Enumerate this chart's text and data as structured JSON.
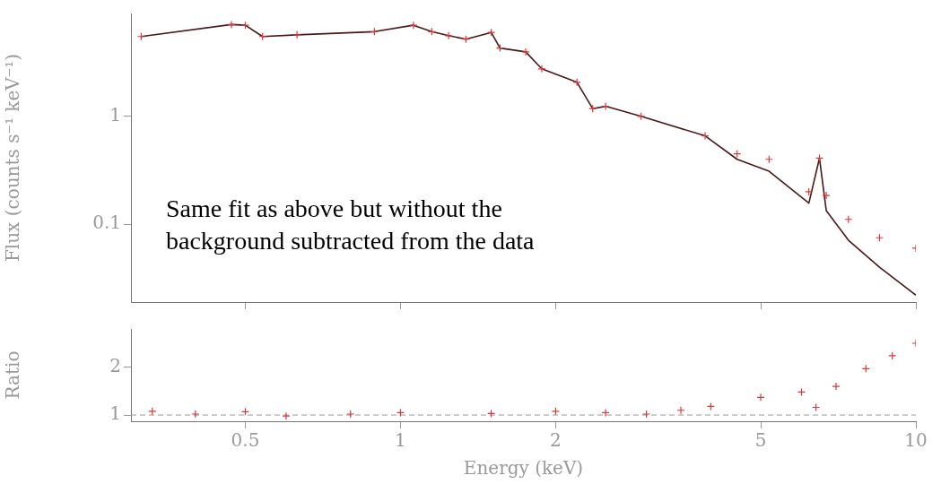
{
  "chart_data": [
    {
      "type": "line",
      "log": "xy",
      "ylabel": "Flux (counts s⁻¹ keV⁻¹)",
      "xlim": [
        0.3,
        10
      ],
      "ylim": [
        0.019,
        9
      ],
      "xticks": [
        {
          "value": 0.5,
          "label": null
        },
        {
          "value": 1,
          "label": null
        },
        {
          "value": 2,
          "label": null
        },
        {
          "value": 5,
          "label": null
        },
        {
          "value": 10,
          "label": null
        }
      ],
      "yticks": [
        0.1,
        1
      ],
      "tick_labels": "y",
      "annotations": [
        "Same fit as above but without the background subtracted from the data"
      ],
      "series": [
        {
          "type": "scatter",
          "marker": "cross",
          "color": "#d83a3a",
          "x": [
            0.314,
            0.47,
            0.5,
            0.54,
            0.63,
            0.89,
            1.06,
            1.15,
            1.24,
            1.34,
            1.5,
            1.56,
            1.75,
            1.88,
            2.2,
            2.36,
            2.5,
            2.93,
            3.9,
            4.5,
            5.19,
            6.2,
            6.5,
            6.7,
            7.4,
            8.5,
            10
          ],
          "values": [
            5.5,
            7.1,
            7.0,
            5.5,
            5.7,
            6.1,
            7.0,
            6.1,
            5.6,
            5.2,
            6.0,
            4.3,
            3.96,
            2.76,
            2.07,
            1.18,
            1.24,
            1.0,
            0.66,
            0.45,
            0.4,
            0.2,
            0.41,
            0.185,
            0.111,
            0.075,
            0.06
          ]
        },
        {
          "line_style": "solid",
          "color": "#4a1818",
          "x": [
            0.314,
            0.47,
            0.5,
            0.54,
            0.63,
            0.89,
            1.06,
            1.15,
            1.24,
            1.34,
            1.5,
            1.56,
            1.75,
            1.88,
            2.2,
            2.36,
            2.5,
            2.93,
            3.9,
            4.5,
            5.19,
            6.2,
            6.5,
            6.7,
            7.4,
            8.5,
            10
          ],
          "values": [
            5.5,
            7.1,
            7.0,
            5.5,
            5.7,
            6.1,
            7.0,
            6.1,
            5.6,
            5.2,
            6.0,
            4.3,
            3.96,
            2.76,
            2.07,
            1.18,
            1.24,
            1.0,
            0.66,
            0.4,
            0.31,
            0.157,
            0.41,
            0.134,
            0.071,
            0.04,
            0.022
          ]
        }
      ]
    },
    {
      "type": "scatter",
      "log": "x",
      "ylabel": "Ratio",
      "xlabel": "Energy (keV)",
      "xlim": [
        0.3,
        10
      ],
      "ylim": [
        0.87,
        2.8
      ],
      "xticks": [
        0.5,
        1,
        2,
        5,
        10
      ],
      "yticks": [
        1,
        2
      ],
      "ref_lines": [
        {
          "axis": "y",
          "value": 1,
          "line_style": "dashed",
          "color": "#999999"
        }
      ],
      "series": [
        {
          "marker": "cross",
          "color": "#d83a3a",
          "x": [
            0.33,
            0.4,
            0.5,
            0.6,
            0.8,
            1.0,
            1.5,
            2.0,
            2.5,
            3.0,
            3.5,
            4.0,
            5.0,
            6.0,
            6.4,
            7.0,
            8.0,
            9.0,
            10
          ],
          "values": [
            1.08,
            1.02,
            1.07,
            0.98,
            1.02,
            1.05,
            1.03,
            1.08,
            1.05,
            1.02,
            1.1,
            1.18,
            1.37,
            1.48,
            1.16,
            1.6,
            1.97,
            2.24,
            2.5
          ]
        }
      ]
    }
  ]
}
